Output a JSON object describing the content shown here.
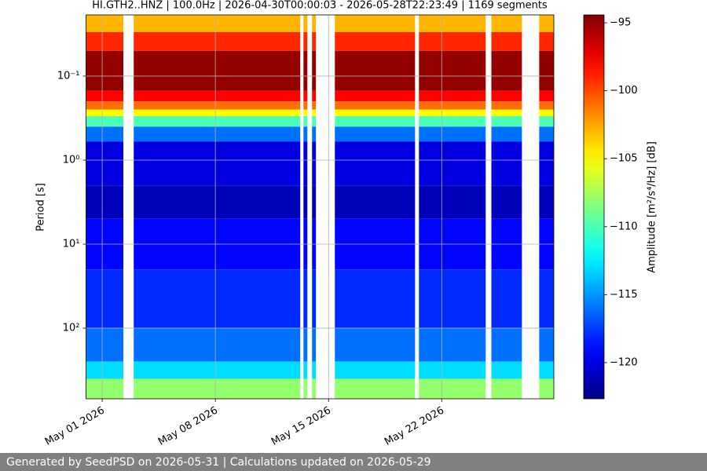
{
  "chart_data": {
    "type": "spectrogram",
    "title": "HI.GTH2..HNZ | 100.0Hz | 2026-04-30T00:00:03 - 2026-05-28T22:23:49 | 1169 segments",
    "y_label": "Period [s]",
    "colorbar_label": "Amplitude [m²/s⁴/Hz] [dB]",
    "footer": "Generated by SeedPSD on 2026-05-31 | Calculations updated on 2026-05-29",
    "xlim": [
      "2026-04-30T00:00:03",
      "2026-05-28T22:23:49"
    ],
    "xticks": [
      {
        "value": "2026-05-01",
        "label": "May 01 2026"
      },
      {
        "value": "2026-05-08",
        "label": "May 08 2026"
      },
      {
        "value": "2026-05-15",
        "label": "May 15 2026"
      },
      {
        "value": "2026-05-22",
        "label": "May 22 2026"
      }
    ],
    "ylim": [
      0.0187,
      692
    ],
    "log_y": true,
    "y_inverted": true,
    "yticks": [
      {
        "value": 0.1,
        "label": "10⁻¹"
      },
      {
        "value": 1,
        "label": "10⁰"
      },
      {
        "value": 10,
        "label": "10¹"
      },
      {
        "value": 100,
        "label": "10²"
      }
    ],
    "grid": true,
    "colormap": "jet",
    "clim": [
      -122.66,
      -94.42
    ],
    "cticks": [
      {
        "value": -120,
        "label": "−120"
      },
      {
        "value": -115,
        "label": "−115"
      },
      {
        "value": -110,
        "label": "−110"
      },
      {
        "value": -105,
        "label": "−105"
      },
      {
        "value": -100,
        "label": "−100"
      },
      {
        "value": -95,
        "label": "−95"
      }
    ],
    "segments": [
      [
        "2026-04-30T00:00:03",
        "2026-05-02T07:26"
      ],
      [
        "2026-05-02T22:48",
        "2026-05-13T06:00"
      ],
      [
        "2026-05-13T10:48",
        "2026-05-13T16:34"
      ],
      [
        "2026-05-13T23:31",
        "2026-05-14T05:17"
      ],
      [
        "2026-05-15T09:22",
        "2026-05-20T08:24"
      ],
      [
        "2026-05-20T14:10",
        "2026-05-24T17:17"
      ],
      [
        "2026-05-25T01:41",
        "2026-05-26T23:02"
      ],
      [
        "2026-05-28T00:43",
        "2026-05-28T22:23:49"
      ]
    ],
    "period_bins": [
      0.0187,
      0.03,
      0.05,
      0.15,
      0.2,
      0.25,
      0.3,
      0.4,
      0.6,
      2,
      5,
      20,
      100,
      250,
      400,
      692
    ],
    "values": [
      -103,
      -99,
      -95,
      -98,
      -101,
      -105,
      -110,
      -116,
      -120,
      -121,
      -119,
      -118,
      -116,
      -113,
      -108
    ]
  }
}
